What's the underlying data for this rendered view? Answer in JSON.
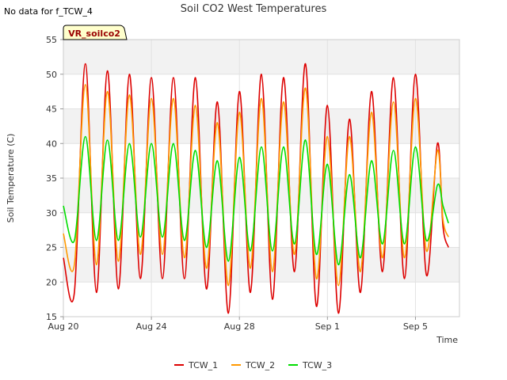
{
  "note": "No data for f_TCW_4",
  "chart_data": {
    "type": "line",
    "title": "Soil CO2 West Temperatures",
    "xlabel": "Time",
    "ylabel": "Soil Temperature (C)",
    "site_label": "VR_soilco2",
    "xlim": [
      "2023-08-20",
      "2023-09-07"
    ],
    "ylim": [
      15,
      55
    ],
    "yticks": [
      15,
      20,
      25,
      30,
      35,
      40,
      45,
      50,
      55
    ],
    "xticks": [
      {
        "date": "2023-08-20",
        "label": "Aug 20"
      },
      {
        "date": "2023-08-24",
        "label": "Aug 24"
      },
      {
        "date": "2023-08-28",
        "label": "Aug 28"
      },
      {
        "date": "2023-09-01",
        "label": "Sep 1"
      },
      {
        "date": "2023-09-05",
        "label": "Sep 5"
      }
    ],
    "grid": true,
    "legend_position": "bottom",
    "sample_interval_hours": 12,
    "times": [
      "2023-08-20 00:00",
      "2023-08-20 12:00",
      "2023-08-21 00:00",
      "2023-08-21 12:00",
      "2023-08-22 00:00",
      "2023-08-22 12:00",
      "2023-08-23 00:00",
      "2023-08-23 12:00",
      "2023-08-24 00:00",
      "2023-08-24 12:00",
      "2023-08-25 00:00",
      "2023-08-25 12:00",
      "2023-08-26 00:00",
      "2023-08-26 12:00",
      "2023-08-27 00:00",
      "2023-08-27 12:00",
      "2023-08-28 00:00",
      "2023-08-28 12:00",
      "2023-08-29 00:00",
      "2023-08-29 12:00",
      "2023-08-30 00:00",
      "2023-08-30 12:00",
      "2023-08-31 00:00",
      "2023-08-31 12:00",
      "2023-09-01 00:00",
      "2023-09-01 12:00",
      "2023-09-02 00:00",
      "2023-09-02 12:00",
      "2023-09-03 00:00",
      "2023-09-03 12:00",
      "2023-09-04 00:00",
      "2023-09-04 12:00",
      "2023-09-05 00:00",
      "2023-09-05 12:00",
      "2023-09-06 00:00",
      "2023-09-06 06:00",
      "2023-09-06 12:00"
    ],
    "series": [
      {
        "name": "TCW_1",
        "color": "#dd0000",
        "values": [
          23.5,
          18.5,
          51.5,
          18.5,
          50.5,
          19,
          50,
          20.5,
          49.5,
          20.5,
          49.5,
          20.5,
          49.5,
          19,
          46,
          15.5,
          47.5,
          18.5,
          50,
          17.5,
          49.5,
          21.5,
          51.5,
          16.5,
          45.5,
          15.5,
          43.5,
          18.5,
          47.5,
          21.5,
          49.5,
          20.5,
          50,
          21,
          40,
          28,
          25
        ]
      },
      {
        "name": "TCW_2",
        "color": "#ff9900",
        "values": [
          27,
          22.5,
          48.5,
          22.5,
          47.5,
          23,
          47,
          24,
          46.5,
          24,
          46.5,
          23.5,
          45.5,
          22,
          43,
          19.5,
          44.5,
          22,
          46.5,
          21.5,
          46,
          24,
          48,
          20.5,
          41,
          19.5,
          41,
          21.5,
          44.5,
          23.5,
          46,
          23.5,
          46.5,
          24.5,
          39,
          29,
          26.5
        ]
      },
      {
        "name": "TCW_3",
        "color": "#00dd00",
        "values": [
          31,
          26,
          41,
          26,
          40.5,
          26,
          40,
          26.5,
          40,
          26.5,
          40,
          26,
          39,
          25,
          37.5,
          23,
          38,
          24.5,
          39.5,
          24.5,
          39.5,
          25.5,
          40.5,
          24,
          37,
          22.5,
          35.5,
          23.5,
          37.5,
          25.5,
          39,
          25.5,
          39.5,
          26,
          34,
          31,
          28.5
        ]
      }
    ]
  }
}
